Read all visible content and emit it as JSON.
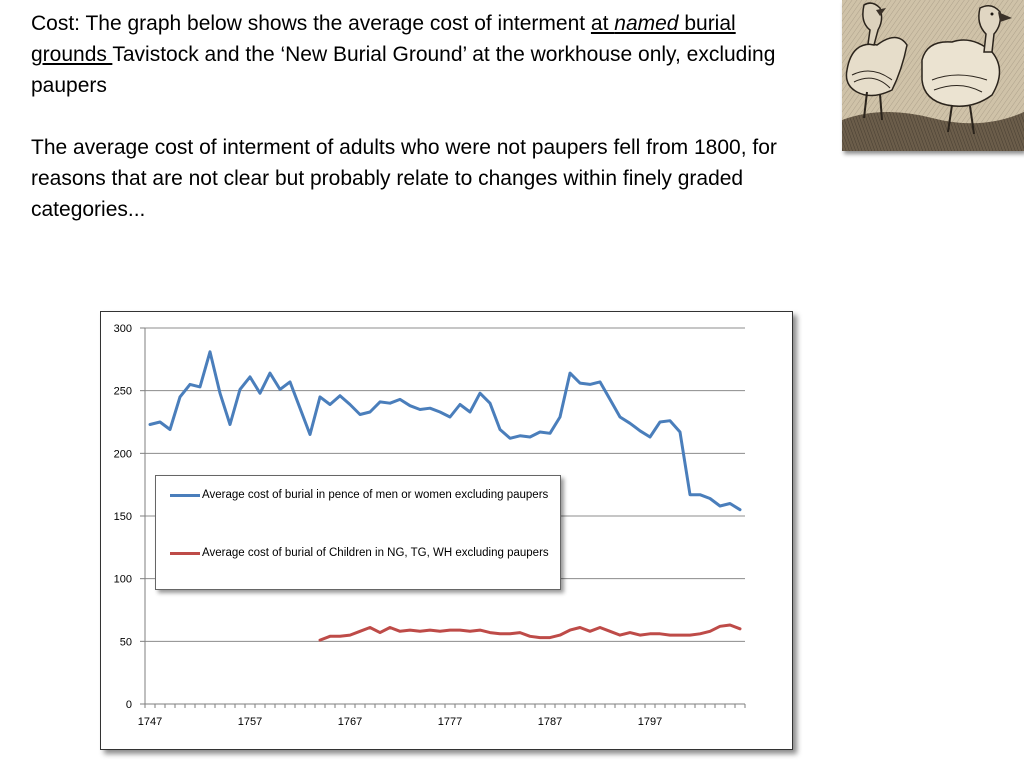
{
  "slide": {
    "para1_prefix": "Cost: The graph below shows the average cost of interment ",
    "para1_u1": "at ",
    "para1_u2": "named",
    "para1_u3": " burial grounds ",
    "para1_suffix": "Tavistock and the ‘New Burial Ground’ at the workhouse only, excluding paupers",
    "para2": "The average cost of interment of adults who were not paupers fell from 1800, for reasons that are not clear but probably relate to changes within finely graded categories..."
  },
  "colors": {
    "series1": "#4a7ebb",
    "series2": "#be4b48",
    "grid": "#8c8c8c"
  },
  "chart_data": {
    "type": "line",
    "title": "",
    "xlabel": "",
    "ylabel": "",
    "ylim": [
      0,
      300
    ],
    "xlim": [
      1746.5,
      1806.5
    ],
    "x_ticks": [
      1747,
      1757,
      1767,
      1777,
      1787,
      1797
    ],
    "y_ticks": [
      0,
      50,
      100,
      150,
      200,
      250,
      300
    ],
    "grid": true,
    "legend_position": "inside-left",
    "series": [
      {
        "name": "Average cost of burial in pence of men or women excluding paupers",
        "color": "#4a7ebb",
        "x": [
          1747,
          1748,
          1749,
          1750,
          1751,
          1752,
          1753,
          1754,
          1755,
          1756,
          1757,
          1758,
          1759,
          1760,
          1761,
          1762,
          1763,
          1764,
          1765,
          1766,
          1767,
          1768,
          1769,
          1770,
          1771,
          1772,
          1773,
          1774,
          1775,
          1776,
          1777,
          1778,
          1779,
          1780,
          1781,
          1782,
          1783,
          1784,
          1785,
          1786,
          1787,
          1788,
          1789,
          1790,
          1791,
          1792,
          1793,
          1794,
          1795,
          1796,
          1797,
          1798,
          1799,
          1800,
          1801,
          1802,
          1803,
          1804,
          1805,
          1806
        ],
        "values": [
          223,
          225,
          219,
          245,
          255,
          253,
          281,
          248,
          223,
          251,
          261,
          248,
          264,
          251,
          257,
          236,
          215,
          245,
          239,
          246,
          239,
          231,
          233,
          241,
          240,
          243,
          238,
          235,
          236,
          233,
          229,
          239,
          233,
          248,
          240,
          219,
          212,
          214,
          213,
          217,
          216,
          229,
          264,
          256,
          255,
          257,
          243,
          229,
          224,
          218,
          213,
          225,
          226,
          217,
          167,
          167,
          164,
          158,
          160,
          155
        ]
      },
      {
        "name": "Average cost of burial of Children in NG, TG, WH excluding paupers",
        "color": "#be4b48",
        "x": [
          1764,
          1765,
          1766,
          1767,
          1768,
          1769,
          1770,
          1771,
          1772,
          1773,
          1774,
          1775,
          1776,
          1777,
          1778,
          1779,
          1780,
          1781,
          1782,
          1783,
          1784,
          1785,
          1786,
          1787,
          1788,
          1789,
          1790,
          1791,
          1792,
          1793,
          1794,
          1795,
          1796,
          1797,
          1798,
          1799,
          1800,
          1801,
          1802,
          1803,
          1804,
          1805,
          1806
        ],
        "values": [
          51,
          54,
          54,
          55,
          58,
          61,
          57,
          61,
          58,
          59,
          58,
          59,
          58,
          59,
          59,
          58,
          59,
          57,
          56,
          56,
          57,
          54,
          53,
          53,
          55,
          59,
          61,
          58,
          61,
          58,
          55,
          57,
          55,
          56,
          56,
          55,
          55,
          55,
          56,
          58,
          62,
          63,
          60
        ]
      }
    ]
  }
}
